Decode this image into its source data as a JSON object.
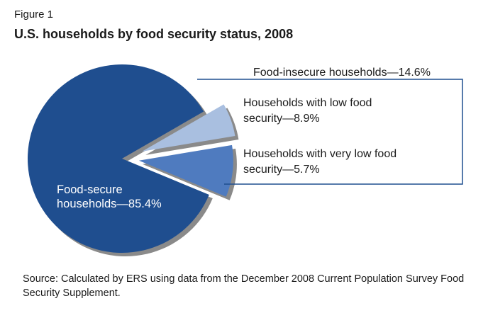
{
  "figure_label": "Figure 1",
  "title": "U.S. households by food security status, 2008",
  "source": "Source: Calculated by ERS using data from the December 2008 Current Population Survey Food Security Supplement.",
  "colors": {
    "food_secure": "#1f4e8f",
    "low_food_security": "#4f7bbf",
    "very_low_food_security": "#a9bfe0",
    "shadow": "#8a8a8a",
    "bracket": "#1f4e8f"
  },
  "chart_data": {
    "type": "pie",
    "title": "U.S. households by food security status, 2008",
    "unit": "%",
    "slices": [
      {
        "label": "Food-secure households",
        "value": 85.4,
        "label_lines": [
          "Food-secure",
          "households—85.4%"
        ]
      },
      {
        "label": "Households with low food security",
        "value": 8.9,
        "label_lines": [
          "Households with low food",
          "security—8.9%"
        ]
      },
      {
        "label": "Households with very low food security",
        "value": 5.7,
        "label_lines": [
          "Households with very low food",
          "security—5.7%"
        ]
      }
    ],
    "group_annotation": "Food-insecure households—14.6%"
  }
}
